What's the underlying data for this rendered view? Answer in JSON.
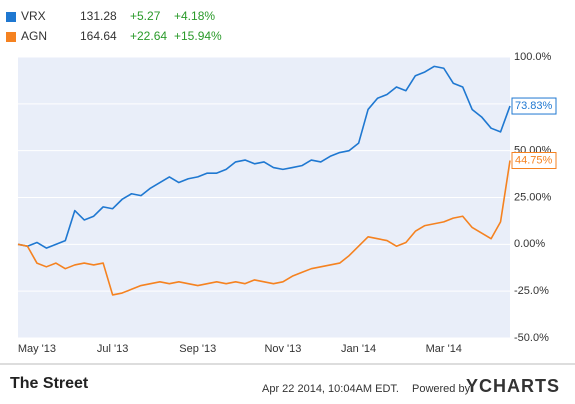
{
  "chart_data": {
    "type": "line",
    "categories": [
      null,
      null,
      "May '13",
      null,
      null,
      null,
      null,
      null,
      null,
      null,
      "Jul '13",
      null,
      null,
      null,
      null,
      null,
      null,
      null,
      null,
      "Sep '13",
      null,
      null,
      null,
      null,
      null,
      null,
      null,
      null,
      "Nov '13",
      null,
      null,
      null,
      null,
      null,
      null,
      null,
      "Jan '14",
      null,
      null,
      null,
      null,
      null,
      null,
      null,
      null,
      "Mar '14",
      null,
      null,
      null,
      null,
      null,
      null,
      null
    ],
    "series": [
      {
        "name": "VRX",
        "price": 131.28,
        "change": "+5.27",
        "change_pct": "+4.18%",
        "color": "#1f78d1",
        "values": [
          0,
          -1,
          1,
          -2,
          0,
          2,
          18,
          13,
          15,
          20,
          19,
          24,
          27,
          26,
          30,
          33,
          36,
          33,
          35,
          36,
          38,
          38,
          40,
          44,
          45,
          43,
          44,
          41,
          40,
          41,
          42,
          45,
          44,
          47,
          49,
          50,
          54,
          72,
          78,
          80,
          84,
          82,
          90,
          92,
          95,
          94,
          86,
          84,
          72,
          68,
          62,
          60,
          73.83
        ],
        "value_labels": [
          null,
          null,
          null,
          null,
          null,
          null,
          null,
          null,
          null,
          null,
          null,
          null,
          null,
          null,
          null,
          null,
          null,
          null,
          null,
          null,
          null,
          null,
          null,
          null,
          null,
          null,
          null,
          null,
          null,
          null,
          null,
          null,
          null,
          null,
          null,
          null,
          null,
          null,
          null,
          null,
          null,
          null,
          null,
          null,
          null,
          null,
          null,
          null,
          null,
          null,
          null,
          null,
          "73.83%"
        ]
      },
      {
        "name": "AGN",
        "price": 164.64,
        "change": "+22.64",
        "change_pct": "+15.94%",
        "color": "#f58220",
        "values": [
          0,
          -1,
          -10,
          -12,
          -10,
          -13,
          -11,
          -10,
          -11,
          -10,
          -27,
          -26,
          -24,
          -22,
          -21,
          -20,
          -21,
          -20,
          -21,
          -22,
          -21,
          -20,
          -21,
          -20,
          -21,
          -19,
          -20,
          -21,
          -20,
          -17,
          -15,
          -13,
          -12,
          -11,
          -10,
          -6,
          -1,
          4,
          3,
          2,
          -1,
          1,
          7,
          10,
          11,
          12,
          14,
          15,
          9,
          6,
          3,
          12,
          44.75
        ],
        "value_labels": [
          null,
          null,
          null,
          null,
          null,
          null,
          null,
          null,
          null,
          null,
          null,
          null,
          null,
          null,
          null,
          null,
          null,
          null,
          null,
          null,
          null,
          null,
          null,
          null,
          null,
          null,
          null,
          null,
          null,
          null,
          null,
          null,
          null,
          null,
          null,
          null,
          null,
          null,
          null,
          null,
          null,
          null,
          null,
          null,
          null,
          null,
          null,
          null,
          null,
          null,
          null,
          null,
          "44.75%"
        ]
      }
    ],
    "ylim": [
      -50,
      100
    ],
    "yticks": [
      {
        "value": -50,
        "label": "-50.0%"
      },
      {
        "value": -25,
        "label": "-25.0%"
      },
      {
        "value": 0,
        "label": "0.00%"
      },
      {
        "value": 25,
        "label": "25.00%"
      },
      {
        "value": 50,
        "label": "50.00%"
      },
      {
        "value": 75,
        "label": "75.00%"
      },
      {
        "value": 100,
        "label": "100.0%"
      }
    ],
    "grid": true
  },
  "footer": {
    "source": "The Street",
    "timestamp": "Apr 22 2014, 10:04AM EDT.",
    "powered_by": "Powered by",
    "brand": "YCHARTS"
  }
}
